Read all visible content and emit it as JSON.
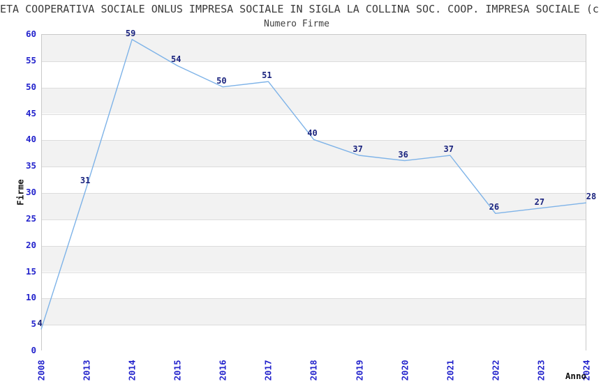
{
  "header": {
    "title": "ETA COOPERATIVA SOCIALE ONLUS IMPRESA SOCIALE IN SIGLA LA COLLINA SOC. COOP. IMPRESA SOCIALE (c",
    "subtitle": "Numero Firme"
  },
  "chart_data": {
    "type": "line",
    "title": "Numero Firme",
    "series_name": "Numero Firme",
    "categories": [
      "2008",
      "2013",
      "2014",
      "2015",
      "2016",
      "2017",
      "2018",
      "2019",
      "2020",
      "2021",
      "2022",
      "2023",
      "2024"
    ],
    "values": [
      4,
      31,
      59,
      54,
      50,
      51,
      40,
      37,
      36,
      37,
      26,
      27,
      28
    ],
    "point_labels": [
      "4",
      "31",
      "59",
      "54",
      "50",
      "51",
      "40",
      "37",
      "36",
      "37",
      "26",
      "27",
      "28"
    ],
    "xlabel": "Anno",
    "ylabel": "Firme",
    "ylim": [
      0,
      60
    ],
    "ytick_step": 5,
    "yticks": [
      0,
      5,
      10,
      15,
      20,
      25,
      30,
      35,
      40,
      45,
      50,
      55,
      60
    ],
    "grid": "horizontal gridlines every 5 units with alternating shaded bands",
    "legend_position": "none",
    "colors": {
      "line": "#7eb3e8",
      "point_labels": "#1a237e",
      "tick_labels": "#2323cc",
      "axis_titles": "#111111",
      "title_text": "#3a3a3a",
      "band_fill": "#f2f2f2",
      "band_alt_fill": "#ffffff",
      "gridline": "#dcdcdc",
      "plot_border": "#c9c9c9",
      "background": "#ffffff"
    }
  }
}
